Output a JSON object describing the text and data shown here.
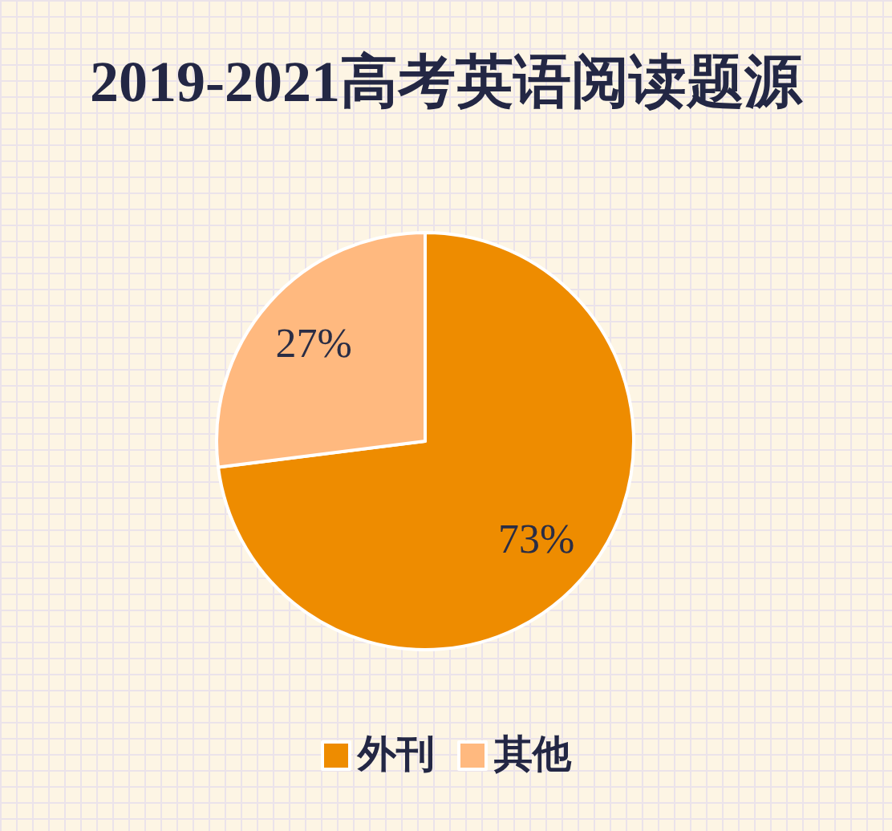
{
  "chart_data": {
    "type": "pie",
    "title": "2019-2021高考英语阅读题源",
    "categories": [
      "外刊",
      "其他"
    ],
    "values": [
      73,
      27
    ],
    "colors": [
      "#ee8c00",
      "#ffb97f"
    ],
    "value_labels": [
      "73%",
      "27%"
    ],
    "legend": "bottom"
  }
}
